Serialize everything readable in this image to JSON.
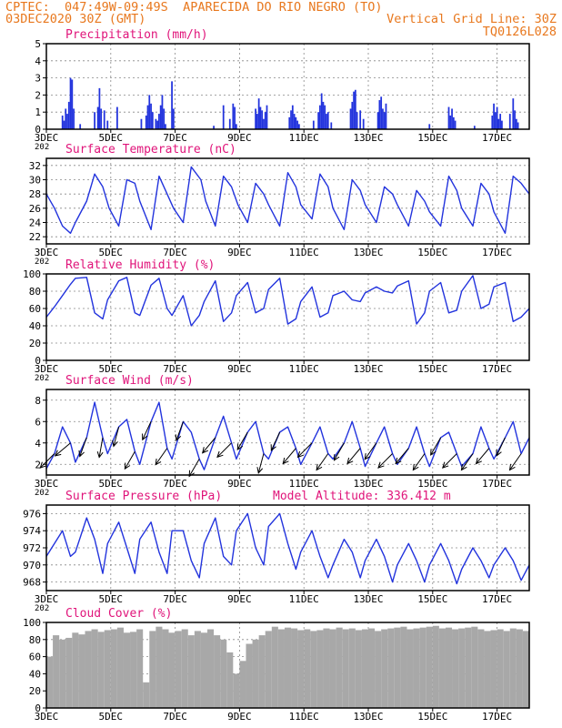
{
  "header": {
    "line1": "CPTEC:  047:49W-09:49S  APARECIDA DO RIO NEGRO (TO)",
    "line2_left": "03DEC2020 30Z (GMT)",
    "line2_right": "Vertical Grid Line: 30Z",
    "line3_right": "TQ0126L028"
  },
  "colors": {
    "header": "#e8781e",
    "title": "#e0147a",
    "line": "#2233dd",
    "bar": "#2233dd",
    "cloud": "#a8a8a8",
    "grid": "#888888"
  },
  "x_axis": {
    "start_day": 3,
    "end_day": 18,
    "tick_labels": [
      "3DEC",
      "5DEC",
      "7DEC",
      "9DEC",
      "11DEC",
      "13DEC",
      "15DEC",
      "17DEC"
    ],
    "tick_days": [
      3,
      5,
      7,
      9,
      11,
      13,
      15,
      17
    ],
    "clipped_label": "202"
  },
  "chart_data": [
    {
      "id": "precip",
      "type": "bar",
      "title": "Precipitation (mm/h)",
      "ylim": [
        0,
        5
      ],
      "yticks": [
        0,
        1,
        2,
        3,
        4,
        5
      ],
      "x": [
        3.5,
        3.55,
        3.6,
        3.65,
        3.7,
        3.75,
        3.8,
        3.85,
        4.05,
        4.5,
        4.6,
        4.65,
        4.7,
        4.8,
        4.9,
        5.2,
        5.95,
        6.1,
        6.15,
        6.2,
        6.25,
        6.3,
        6.4,
        6.45,
        6.5,
        6.55,
        6.6,
        6.65,
        6.7,
        6.9,
        6.95,
        8.2,
        8.5,
        8.7,
        8.8,
        8.85,
        8.9,
        9.5,
        9.55,
        9.6,
        9.65,
        9.7,
        9.75,
        9.8,
        9.85,
        10.55,
        10.6,
        10.65,
        10.7,
        10.75,
        10.8,
        10.85,
        11.3,
        11.45,
        11.5,
        11.55,
        11.6,
        11.65,
        11.7,
        11.75,
        11.85,
        12.45,
        12.5,
        12.55,
        12.6,
        12.65,
        12.75,
        12.85,
        13.3,
        13.35,
        13.4,
        13.45,
        13.5,
        13.55,
        14.9,
        15.5,
        15.55,
        15.6,
        15.65,
        15.7,
        16.3,
        16.85,
        16.9,
        16.95,
        17.0,
        17.05,
        17.1,
        17.15,
        17.4,
        17.5,
        17.55,
        17.6,
        17.65
      ],
      "values": [
        0.8,
        0.5,
        1.2,
        0.9,
        1.6,
        3.0,
        2.9,
        1.2,
        0.3,
        1.0,
        1.3,
        2.4,
        1.2,
        1.1,
        0.5,
        1.3,
        0.6,
        0.8,
        1.4,
        2.0,
        1.5,
        1.0,
        0.6,
        0.5,
        0.9,
        1.4,
        2.0,
        1.2,
        0.3,
        2.8,
        1.2,
        0.2,
        1.4,
        0.6,
        1.5,
        1.3,
        0.3,
        1.2,
        0.9,
        1.8,
        1.3,
        1.1,
        0.6,
        1.0,
        1.4,
        0.7,
        1.1,
        1.4,
        0.9,
        0.7,
        0.5,
        0.3,
        0.5,
        1.0,
        1.4,
        2.1,
        1.6,
        1.4,
        0.9,
        1.0,
        0.4,
        1.2,
        1.6,
        2.2,
        2.3,
        1.0,
        1.1,
        0.6,
        1.0,
        1.7,
        1.9,
        1.2,
        1.0,
        1.5,
        0.3,
        1.3,
        0.8,
        1.2,
        0.7,
        0.5,
        0.2,
        0.8,
        1.5,
        1.0,
        1.3,
        0.6,
        0.9,
        0.5,
        0.9,
        1.8,
        1.1,
        0.6,
        0.4
      ]
    },
    {
      "id": "temp",
      "type": "line",
      "title": "Surface Temperature (nC)",
      "ylim": [
        21,
        33
      ],
      "yticks": [
        22,
        24,
        26,
        28,
        30,
        32
      ],
      "x": [
        3.0,
        3.25,
        3.5,
        3.75,
        3.9,
        4.25,
        4.5,
        4.75,
        4.95,
        5.25,
        5.5,
        5.75,
        5.9,
        6.25,
        6.5,
        6.75,
        6.95,
        7.25,
        7.5,
        7.8,
        7.95,
        8.25,
        8.5,
        8.75,
        8.95,
        9.25,
        9.5,
        9.75,
        9.9,
        10.25,
        10.5,
        10.75,
        10.9,
        11.25,
        11.5,
        11.75,
        11.9,
        12.25,
        12.5,
        12.75,
        12.9,
        13.25,
        13.5,
        13.75,
        13.9,
        14.25,
        14.5,
        14.75,
        14.9,
        15.25,
        15.5,
        15.75,
        15.9,
        16.25,
        16.5,
        16.75,
        16.9,
        17.25,
        17.5,
        17.75,
        18.0
      ],
      "values": [
        28,
        26,
        23.5,
        22.5,
        24,
        27,
        30.8,
        29,
        26,
        23.5,
        30,
        29.5,
        27,
        23,
        30.5,
        28,
        26,
        24,
        31.8,
        30,
        27,
        23.5,
        30.5,
        29,
        26.5,
        24,
        29.5,
        28,
        26.5,
        23.5,
        31,
        29,
        26.5,
        24.5,
        30.8,
        29,
        26,
        23,
        30,
        28.5,
        26.5,
        24,
        29,
        28,
        26.5,
        23.5,
        28.5,
        27,
        25.5,
        23.5,
        30.5,
        28.5,
        26,
        23.5,
        29.5,
        28,
        25.5,
        22.5,
        30.5,
        29.5,
        28
      ]
    },
    {
      "id": "rh",
      "type": "line",
      "title": "Relative Humidity (%)",
      "ylim": [
        0,
        100
      ],
      "yticks": [
        0,
        20,
        40,
        60,
        80,
        100
      ],
      "x": [
        3.0,
        3.25,
        3.5,
        3.75,
        3.9,
        4.25,
        4.5,
        4.75,
        4.9,
        5.25,
        5.5,
        5.75,
        5.9,
        6.25,
        6.5,
        6.75,
        6.9,
        7.25,
        7.5,
        7.75,
        7.9,
        8.25,
        8.5,
        8.75,
        8.9,
        9.25,
        9.5,
        9.75,
        9.9,
        10.25,
        10.5,
        10.75,
        10.9,
        11.25,
        11.5,
        11.75,
        11.9,
        12.25,
        12.5,
        12.75,
        12.9,
        13.25,
        13.5,
        13.75,
        13.9,
        14.25,
        14.5,
        14.75,
        14.9,
        15.25,
        15.5,
        15.75,
        15.9,
        16.25,
        16.5,
        16.75,
        16.9,
        17.25,
        17.5,
        17.75,
        18.0
      ],
      "values": [
        50,
        62,
        75,
        88,
        95,
        96,
        55,
        48,
        70,
        92,
        96,
        55,
        52,
        87,
        95,
        60,
        52,
        75,
        40,
        52,
        68,
        92,
        45,
        55,
        75,
        90,
        55,
        60,
        82,
        95,
        42,
        48,
        68,
        85,
        50,
        55,
        75,
        80,
        70,
        68,
        78,
        85,
        80,
        78,
        86,
        92,
        42,
        55,
        80,
        90,
        55,
        58,
        80,
        98,
        60,
        65,
        85,
        90,
        45,
        50,
        60
      ]
    },
    {
      "id": "wind",
      "type": "line",
      "title": "Surface Wind (m/s)",
      "ylim": [
        1,
        9
      ],
      "yticks": [
        2,
        4,
        6,
        8
      ],
      "x": [
        3.0,
        3.25,
        3.5,
        3.75,
        3.9,
        4.25,
        4.5,
        4.75,
        4.9,
        5.25,
        5.5,
        5.75,
        5.9,
        6.25,
        6.5,
        6.75,
        6.9,
        7.25,
        7.5,
        7.75,
        7.9,
        8.25,
        8.5,
        8.75,
        8.9,
        9.25,
        9.5,
        9.75,
        9.9,
        10.25,
        10.5,
        10.75,
        10.9,
        11.25,
        11.5,
        11.75,
        11.9,
        12.25,
        12.5,
        12.75,
        12.9,
        13.25,
        13.5,
        13.75,
        13.9,
        14.25,
        14.5,
        14.75,
        14.9,
        15.25,
        15.5,
        15.75,
        15.9,
        16.25,
        16.5,
        16.75,
        16.9,
        17.25,
        17.5,
        17.75,
        18.0
      ],
      "values": [
        1.6,
        3.0,
        5.5,
        4.0,
        2.2,
        4.5,
        7.8,
        4.5,
        3.0,
        5.5,
        6.2,
        3.2,
        2.0,
        6.0,
        7.8,
        3.5,
        2.5,
        6.0,
        5.0,
        2.5,
        1.5,
        4.5,
        6.5,
        4.0,
        2.5,
        5.0,
        6.0,
        3.0,
        2.5,
        5.0,
        5.5,
        3.5,
        2.0,
        4.0,
        5.5,
        3.0,
        2.5,
        4.0,
        6.0,
        3.5,
        1.8,
        4.0,
        5.5,
        3.0,
        2.0,
        3.5,
        5.5,
        3.0,
        1.8,
        4.5,
        5.0,
        3.0,
        1.8,
        3.0,
        5.5,
        3.5,
        2.5,
        4.5,
        6.0,
        3.0,
        4.5
      ],
      "arrows": {
        "x": [
          3.25,
          3.75,
          4.25,
          4.75,
          5.25,
          5.75,
          6.25,
          6.75,
          7.25,
          7.75,
          8.25,
          8.75,
          9.25,
          9.75,
          10.25,
          10.75,
          11.25,
          11.75,
          12.25,
          12.75,
          13.25,
          13.75,
          14.25,
          14.75,
          15.25,
          15.75,
          16.25,
          16.75,
          17.25,
          17.75
        ],
        "speed": [
          3.0,
          4.0,
          4.5,
          4.5,
          5.5,
          3.2,
          6.0,
          3.5,
          6.0,
          2.5,
          4.5,
          4.0,
          5.0,
          3.0,
          5.0,
          3.5,
          4.0,
          3.0,
          4.0,
          3.5,
          4.0,
          3.0,
          3.5,
          3.0,
          4.5,
          3.0,
          3.0,
          3.5,
          4.5,
          3.0
        ],
        "dir_deg": [
          45,
          40,
          70,
          80,
          75,
          60,
          65,
          55,
          70,
          60,
          50,
          45,
          60,
          75,
          65,
          50,
          45,
          55,
          60,
          50,
          55,
          45,
          50,
          55,
          60,
          45,
          55,
          50,
          65,
          55
        ]
      }
    },
    {
      "id": "pres",
      "type": "line",
      "title": "Surface Pressure (hPa)",
      "subtitle": "Model Altitude: 336.412 m",
      "ylim": [
        967,
        977
      ],
      "yticks": [
        968,
        970,
        972,
        974,
        976
      ],
      "x": [
        3.0,
        3.25,
        3.5,
        3.75,
        3.9,
        4.25,
        4.5,
        4.75,
        4.9,
        5.25,
        5.5,
        5.75,
        5.9,
        6.25,
        6.5,
        6.75,
        6.9,
        7.25,
        7.5,
        7.75,
        7.9,
        8.25,
        8.5,
        8.75,
        8.9,
        9.25,
        9.5,
        9.75,
        9.9,
        10.25,
        10.5,
        10.75,
        10.9,
        11.25,
        11.5,
        11.75,
        11.9,
        12.25,
        12.5,
        12.75,
        12.9,
        13.25,
        13.5,
        13.75,
        13.9,
        14.25,
        14.5,
        14.75,
        14.9,
        15.25,
        15.5,
        15.75,
        15.9,
        16.25,
        16.5,
        16.75,
        16.9,
        17.25,
        17.5,
        17.75,
        18.0
      ],
      "values": [
        971,
        972.5,
        974,
        971,
        971.5,
        975.5,
        973,
        969,
        972.5,
        975,
        972,
        969,
        973,
        975,
        971.5,
        969,
        974,
        974,
        970.5,
        968.5,
        972.5,
        975.5,
        971,
        970,
        974,
        976,
        972,
        970,
        974.5,
        976,
        972.5,
        969.5,
        971.5,
        974,
        971,
        968.5,
        970,
        973,
        971.5,
        968.5,
        970.5,
        973,
        971,
        968,
        970,
        972.5,
        970.5,
        968,
        970,
        972.5,
        970.5,
        967.8,
        969.5,
        972,
        970.5,
        968.5,
        970,
        972,
        970.5,
        968.2,
        970
      ]
    },
    {
      "id": "cloud",
      "type": "bar",
      "title": "Cloud Cover (%)",
      "ylim": [
        0,
        100
      ],
      "yticks": [
        0,
        20,
        40,
        60,
        80,
        100
      ],
      "x": [
        3.0,
        3.2,
        3.4,
        3.6,
        3.8,
        4.0,
        4.2,
        4.4,
        4.6,
        4.8,
        5.0,
        5.2,
        5.4,
        5.6,
        5.8,
        6.0,
        6.2,
        6.4,
        6.6,
        6.8,
        7.0,
        7.2,
        7.4,
        7.6,
        7.8,
        8.0,
        8.2,
        8.4,
        8.6,
        8.8,
        9.0,
        9.2,
        9.4,
        9.6,
        9.8,
        10.0,
        10.2,
        10.4,
        10.6,
        10.8,
        11.0,
        11.2,
        11.4,
        11.6,
        11.8,
        12.0,
        12.2,
        12.4,
        12.6,
        12.8,
        13.0,
        13.2,
        13.4,
        13.6,
        13.8,
        14.0,
        14.2,
        14.4,
        14.6,
        14.8,
        15.0,
        15.2,
        15.4,
        15.6,
        15.8,
        16.0,
        16.2,
        16.4,
        16.6,
        16.8,
        17.0,
        17.2,
        17.4,
        17.6,
        17.8
      ],
      "values": [
        60,
        85,
        80,
        82,
        88,
        86,
        90,
        92,
        89,
        91,
        92,
        94,
        88,
        89,
        92,
        30,
        90,
        95,
        92,
        88,
        90,
        92,
        85,
        90,
        88,
        92,
        85,
        80,
        65,
        40,
        55,
        75,
        80,
        85,
        90,
        95,
        92,
        94,
        93,
        91,
        92,
        90,
        91,
        93,
        92,
        94,
        92,
        93,
        91,
        92,
        93,
        90,
        92,
        93,
        94,
        95,
        92,
        93,
        94,
        95,
        96,
        93,
        94,
        92,
        93,
        94,
        95,
        92,
        90,
        91,
        92,
        90,
        93,
        92,
        90
      ]
    }
  ]
}
